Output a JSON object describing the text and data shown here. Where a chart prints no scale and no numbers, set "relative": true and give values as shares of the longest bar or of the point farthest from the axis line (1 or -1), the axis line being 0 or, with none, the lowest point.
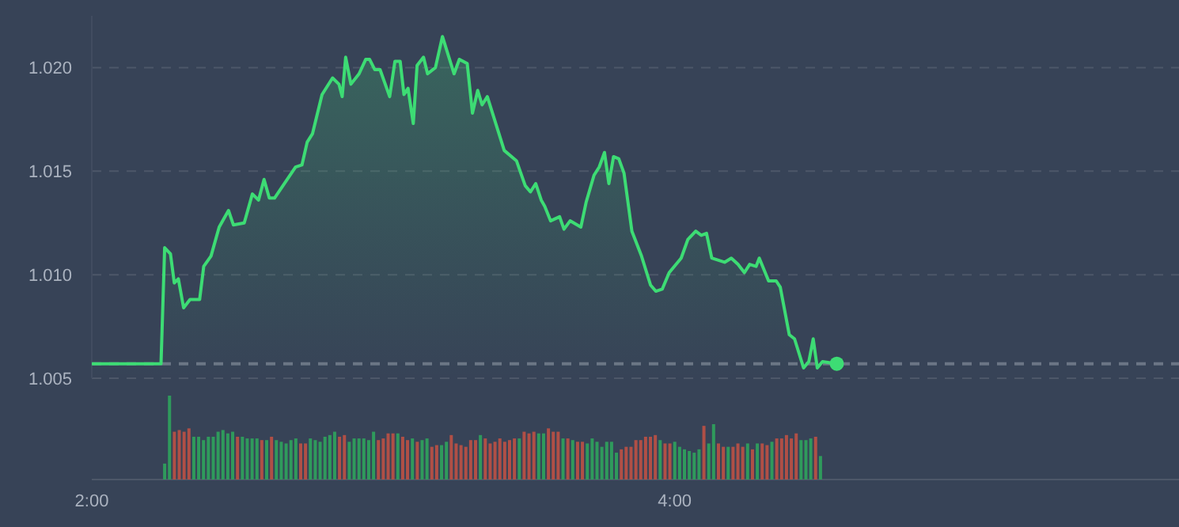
{
  "chart_data": [
    {
      "type": "area",
      "xlim": [
        2,
        5.73
      ],
      "ylim": [
        1.005,
        1.0225
      ],
      "yticks": [
        {
          "value": 1.005,
          "label": "1.005"
        },
        {
          "value": 1.01,
          "label": "1.010"
        },
        {
          "value": 1.015,
          "label": "1.015"
        },
        {
          "value": 1.02,
          "label": "1.020"
        }
      ],
      "grid": "y",
      "tick_labels": "y",
      "x": [
        2,
        2.2375,
        2.25,
        2.27,
        2.283,
        2.297,
        2.315,
        2.337,
        2.37,
        2.384,
        2.409,
        2.437,
        2.469,
        2.486,
        2.523,
        2.551,
        2.572,
        2.591,
        2.609,
        2.627,
        2.699,
        2.721,
        2.739,
        2.757,
        2.79,
        2.826,
        2.848,
        2.859,
        2.871,
        2.889,
        2.917,
        2.94,
        2.953,
        2.971,
        2.989,
        3.022,
        3.04,
        3.058,
        3.071,
        3.085,
        3.103,
        3.116,
        3.138,
        3.152,
        3.179,
        3.203,
        3.243,
        3.261,
        3.288,
        3.306,
        3.324,
        3.339,
        3.357,
        3.415,
        3.457,
        3.487,
        3.505,
        3.523,
        3.542,
        3.554,
        3.574,
        3.605,
        3.62,
        3.641,
        3.678,
        3.696,
        3.723,
        3.741,
        3.759,
        3.774,
        3.79,
        3.808,
        3.826,
        3.853,
        3.886,
        3.917,
        3.935,
        3.957,
        3.981,
        4.022,
        4.045,
        4.072,
        4.091,
        4.109,
        4.127,
        4.171,
        4.194,
        4.217,
        4.239,
        4.257,
        4.279,
        4.29,
        4.322,
        4.348,
        4.362,
        4.393,
        4.411,
        4.442,
        4.46,
        4.475,
        4.489,
        4.507,
        4.556
      ],
      "series": [
        {
          "color": "#3ddc74",
          "values": [
            1.0057,
            1.0057,
            1.0113,
            1.011,
            1.0096,
            1.0098,
            1.0084,
            1.0088,
            1.0088,
            1.0104,
            1.0109,
            1.0123,
            1.0131,
            1.0124,
            1.0125,
            1.0139,
            1.0136,
            1.0146,
            1.0137,
            1.0137,
            1.0152,
            1.0153,
            1.0164,
            1.0168,
            1.0187,
            1.0195,
            1.0192,
            1.0186,
            1.0205,
            1.0192,
            1.0197,
            1.0204,
            1.0204,
            1.0199,
            1.0199,
            1.0186,
            1.0203,
            1.0203,
            1.0187,
            1.019,
            1.0173,
            1.0201,
            1.0205,
            1.0197,
            1.02,
            1.0215,
            1.0197,
            1.0204,
            1.0202,
            1.0178,
            1.0189,
            1.0182,
            1.0186,
            1.016,
            1.0155,
            1.0143,
            1.014,
            1.0144,
            1.0136,
            1.0133,
            1.0126,
            1.0128,
            1.0122,
            1.0126,
            1.0123,
            1.0135,
            1.0148,
            1.0152,
            1.0159,
            1.0144,
            1.0157,
            1.0156,
            1.0149,
            1.0121,
            1.0109,
            1.0095,
            1.0092,
            1.0093,
            1.0101,
            1.0108,
            1.0117,
            1.0121,
            1.0119,
            1.012,
            1.0108,
            1.0106,
            1.0108,
            1.0105,
            1.0101,
            1.0105,
            1.0104,
            1.0108,
            1.0097,
            1.0097,
            1.0094,
            1.0071,
            1.0069,
            1.0055,
            1.0058,
            1.0069,
            1.0055,
            1.0058,
            1.0057
          ]
        }
      ],
      "ref_lines": [
        {
          "axis": "y",
          "value": 1.0057,
          "color": "#6b7585",
          "line_style": "dashed"
        }
      ]
    },
    {
      "type": "bar",
      "relative": true,
      "xlim": [
        2,
        5.73
      ],
      "xticks": [
        {
          "value": 2,
          "label": "2:00"
        },
        {
          "value": 4,
          "label": "4:00"
        }
      ],
      "tick_labels": "x",
      "x": [
        2.25,
        2.2667,
        2.2833,
        2.3,
        2.3167,
        2.3333,
        2.35,
        2.3667,
        2.3833,
        2.4,
        2.4167,
        2.4333,
        2.45,
        2.4667,
        2.4833,
        2.5,
        2.5167,
        2.5333,
        2.55,
        2.5667,
        2.5833,
        2.6,
        2.6167,
        2.6333,
        2.65,
        2.6667,
        2.6833,
        2.7,
        2.7167,
        2.7333,
        2.75,
        2.7667,
        2.7833,
        2.8,
        2.8167,
        2.8333,
        2.85,
        2.8667,
        2.8833,
        2.9,
        2.9167,
        2.9333,
        2.95,
        2.9667,
        2.9833,
        3,
        3.0167,
        3.0333,
        3.05,
        3.0667,
        3.0833,
        3.1,
        3.1167,
        3.1333,
        3.15,
        3.1667,
        3.1833,
        3.2,
        3.2167,
        3.2333,
        3.25,
        3.2667,
        3.2833,
        3.3,
        3.3167,
        3.3333,
        3.35,
        3.3667,
        3.3833,
        3.4,
        3.4167,
        3.4333,
        3.45,
        3.4667,
        3.4833,
        3.5,
        3.5167,
        3.5333,
        3.55,
        3.5667,
        3.5833,
        3.6,
        3.6167,
        3.6333,
        3.65,
        3.6667,
        3.6833,
        3.7,
        3.7167,
        3.7333,
        3.75,
        3.7667,
        3.7833,
        3.8,
        3.8167,
        3.8333,
        3.85,
        3.8667,
        3.8833,
        3.9,
        3.9167,
        3.9333,
        3.95,
        3.9667,
        3.9833,
        4,
        4.0167,
        4.0333,
        4.05,
        4.0667,
        4.0833,
        4.1,
        4.1167,
        4.1333,
        4.15,
        4.1667,
        4.1833,
        4.2,
        4.2167,
        4.2333,
        4.25,
        4.2667,
        4.2833,
        4.3,
        4.3167,
        4.3333,
        4.35,
        4.3667,
        4.3833,
        4.4,
        4.4167,
        4.4333,
        4.45,
        4.4667,
        4.4833,
        4.5
      ],
      "values": [
        0.19,
        1,
        0.57,
        0.59,
        0.57,
        0.61,
        0.51,
        0.51,
        0.47,
        0.51,
        0.51,
        0.57,
        0.59,
        0.55,
        0.57,
        0.51,
        0.51,
        0.49,
        0.49,
        0.49,
        0.47,
        0.47,
        0.51,
        0.47,
        0.45,
        0.43,
        0.47,
        0.49,
        0.43,
        0.43,
        0.49,
        0.47,
        0.45,
        0.51,
        0.53,
        0.57,
        0.51,
        0.53,
        0.45,
        0.49,
        0.49,
        0.49,
        0.47,
        0.57,
        0.47,
        0.49,
        0.55,
        0.55,
        0.55,
        0.51,
        0.47,
        0.49,
        0.45,
        0.47,
        0.49,
        0.39,
        0.41,
        0.41,
        0.45,
        0.53,
        0.43,
        0.41,
        0.39,
        0.47,
        0.47,
        0.53,
        0.49,
        0.43,
        0.45,
        0.49,
        0.45,
        0.47,
        0.49,
        0.49,
        0.57,
        0.55,
        0.57,
        0.55,
        0.55,
        0.61,
        0.57,
        0.57,
        0.49,
        0.49,
        0.47,
        0.45,
        0.45,
        0.43,
        0.49,
        0.45,
        0.39,
        0.45,
        0.45,
        0.32,
        0.36,
        0.39,
        0.39,
        0.47,
        0.47,
        0.51,
        0.51,
        0.53,
        0.47,
        0.43,
        0.43,
        0.45,
        0.39,
        0.36,
        0.34,
        0.32,
        0.36,
        0.64,
        0.43,
        0.66,
        0.43,
        0.39,
        0.39,
        0.39,
        0.43,
        0.39,
        0.43,
        0.36,
        0.43,
        0.43,
        0.41,
        0.45,
        0.49,
        0.49,
        0.53,
        0.49,
        0.55,
        0.47,
        0.47,
        0.49,
        0.51,
        0.28
      ],
      "colors": [
        "#2f9a5c",
        "#2f9a5c",
        "#b04f46",
        "#b04f46",
        "#b04f46",
        "#b04f46",
        "#2f9a5c",
        "#2f9a5c",
        "#2f9a5c",
        "#2f9a5c",
        "#2f9a5c",
        "#2f9a5c",
        "#2f9a5c",
        "#2f9a5c",
        "#2f9a5c",
        "#b04f46",
        "#2f9a5c",
        "#2f9a5c",
        "#2f9a5c",
        "#2f9a5c",
        "#b04f46",
        "#2f9a5c",
        "#b04f46",
        "#2f9a5c",
        "#2f9a5c",
        "#2f9a5c",
        "#2f9a5c",
        "#2f9a5c",
        "#b04f46",
        "#b04f46",
        "#2f9a5c",
        "#2f9a5c",
        "#2f9a5c",
        "#2f9a5c",
        "#2f9a5c",
        "#2f9a5c",
        "#b04f46",
        "#b04f46",
        "#2f9a5c",
        "#2f9a5c",
        "#2f9a5c",
        "#2f9a5c",
        "#2f9a5c",
        "#2f9a5c",
        "#b04f46",
        "#b04f46",
        "#b04f46",
        "#b04f46",
        "#2f9a5c",
        "#b04f46",
        "#b04f46",
        "#2f9a5c",
        "#b04f46",
        "#2f9a5c",
        "#2f9a5c",
        "#b04f46",
        "#b04f46",
        "#2f9a5c",
        "#2f9a5c",
        "#b04f46",
        "#b04f46",
        "#b04f46",
        "#b04f46",
        "#b04f46",
        "#b04f46",
        "#2f9a5c",
        "#b04f46",
        "#b04f46",
        "#b04f46",
        "#b04f46",
        "#b04f46",
        "#b04f46",
        "#b04f46",
        "#2f9a5c",
        "#b04f46",
        "#b04f46",
        "#b04f46",
        "#2f9a5c",
        "#2f9a5c",
        "#b04f46",
        "#b04f46",
        "#b04f46",
        "#2f9a5c",
        "#b04f46",
        "#2f9a5c",
        "#b04f46",
        "#b04f46",
        "#2f9a5c",
        "#2f9a5c",
        "#2f9a5c",
        "#2f9a5c",
        "#2f9a5c",
        "#2f9a5c",
        "#2f9a5c",
        "#b04f46",
        "#b04f46",
        "#b04f46",
        "#b04f46",
        "#b04f46",
        "#b04f46",
        "#b04f46",
        "#b04f46",
        "#2f9a5c",
        "#b04f46",
        "#b04f46",
        "#2f9a5c",
        "#2f9a5c",
        "#2f9a5c",
        "#2f9a5c",
        "#2f9a5c",
        "#2f9a5c",
        "#b04f46",
        "#2f9a5c",
        "#2f9a5c",
        "#b04f46",
        "#b04f46",
        "#2f9a5c",
        "#b04f46",
        "#b04f46",
        "#b04f46",
        "#2f9a5c",
        "#b04f46",
        "#2f9a5c",
        "#b04f46",
        "#b04f46",
        "#2f9a5c",
        "#b04f46",
        "#b04f46",
        "#b04f46",
        "#b04f46",
        "#b04f46",
        "#2f9a5c",
        "#2f9a5c",
        "#2f9a5c",
        "#b04f46",
        "#2f9a5c"
      ]
    }
  ]
}
